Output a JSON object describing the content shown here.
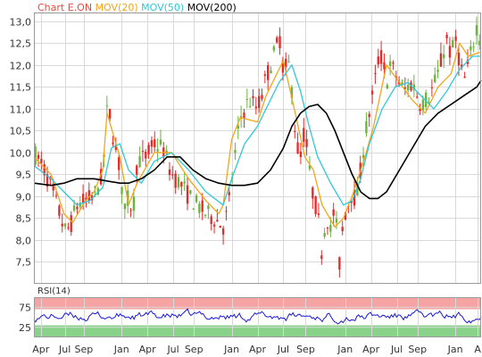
{
  "colors": {
    "background": "#ffffff",
    "panel_bg": "#ffffff",
    "grid": "#d9d9d9",
    "axis": "#9a9a9a",
    "text": "#333333",
    "candle_up": "#6ab43e",
    "candle_down": "#e32b2b",
    "mov20": "#f2a61a",
    "mov50": "#2fc8d9",
    "mov200": "#000000",
    "rsi_line": "#1a1ad6",
    "rsi_overbought": "#f6a3a3",
    "rsi_oversold": "#88d28a"
  },
  "legend": [
    {
      "key": "title",
      "label": "Chart E.ON",
      "color": "#e84c3d"
    },
    {
      "key": "mov20",
      "label": "MOV(20)",
      "color": "#f2a61a"
    },
    {
      "key": "mov50",
      "label": "MOV(50)",
      "color": "#2fc8d9"
    },
    {
      "key": "mov200",
      "label": "MOV(200)",
      "color": "#000000"
    }
  ],
  "chart_data": {
    "type": "line",
    "title": "Chart E.ON",
    "price_axis": {
      "ylim": [
        7.0,
        13.2
      ],
      "ticks": [
        "7,5",
        "8,0",
        "8,5",
        "9,0",
        "9,5",
        "10,0",
        "10,5",
        "11,0",
        "11,5",
        "12,0",
        "12,5",
        "13,0"
      ],
      "tick_values": [
        7.5,
        8.0,
        8.5,
        9.0,
        9.5,
        10.0,
        10.5,
        11.0,
        11.5,
        12.0,
        12.5,
        13.0
      ]
    },
    "x_labels": [
      "Apr",
      "Jul",
      "Sep",
      "Jan",
      "Apr",
      "Jul",
      "Sep",
      "Jan",
      "Apr",
      "Jul",
      "Sep",
      "Jan",
      "Apr",
      "Jul",
      "Sep",
      "Jan",
      "A"
    ],
    "x_label_positions": [
      0.8,
      3.6,
      5.8,
      10.2,
      13.2,
      16.2,
      18.6,
      23.0,
      26.0,
      29.0,
      31.6,
      36.2,
      39.2,
      42.2,
      44.6,
      49.0,
      51.6
    ],
    "x_domain": [
      0,
      52
    ],
    "series": [
      {
        "name": "MOV(20)",
        "x": [
          0,
          2,
          3.5,
          4.5,
          6,
          7,
          8,
          8.5,
          10,
          11,
          12,
          14,
          16,
          18,
          20,
          21.5,
          22,
          23,
          24,
          26,
          27,
          29,
          30.5,
          31.5,
          32.5,
          33.5,
          35,
          36,
          37,
          38.5,
          39.5,
          41,
          42.5,
          44,
          45.5,
          47,
          48.5,
          49.5,
          50.5,
          52
        ],
        "values": [
          9.9,
          9.5,
          8.6,
          8.4,
          8.9,
          9.1,
          9.6,
          10.9,
          9.9,
          8.8,
          9.3,
          10.0,
          10.0,
          9.4,
          8.9,
          8.6,
          8.8,
          10.3,
          10.8,
          10.7,
          11.3,
          12.1,
          10.8,
          9.9,
          9.6,
          8.8,
          8.3,
          8.5,
          9.0,
          9.9,
          10.6,
          12.0,
          11.6,
          11.2,
          10.9,
          11.5,
          11.8,
          12.5,
          12.2,
          12.3
        ]
      },
      {
        "name": "MOV(50)",
        "x": [
          0,
          2,
          3.5,
          5,
          6.5,
          8,
          9,
          10,
          11,
          12.5,
          14,
          16,
          18,
          20,
          22,
          23,
          24.5,
          26,
          27,
          28.5,
          30,
          31,
          32,
          33,
          34.5,
          36,
          37,
          38,
          39,
          40.5,
          42,
          43.5,
          45,
          46.5,
          48,
          49.5,
          51,
          52
        ],
        "values": [
          9.7,
          9.4,
          9.1,
          8.8,
          8.9,
          9.2,
          10.1,
          10.2,
          9.6,
          9.3,
          9.8,
          10.0,
          9.6,
          9.1,
          8.8,
          9.4,
          10.2,
          10.6,
          11.0,
          11.6,
          12.0,
          11.4,
          10.6,
          9.9,
          9.3,
          8.8,
          8.9,
          9.4,
          10.2,
          11.0,
          11.5,
          11.6,
          11.3,
          11.0,
          11.4,
          11.9,
          12.2,
          12.2
        ]
      },
      {
        "name": "MOV(200)",
        "x": [
          0,
          2,
          3.5,
          5,
          7,
          8.5,
          10,
          11,
          12.5,
          14,
          15.5,
          17,
          18.5,
          20,
          21.5,
          23,
          24.5,
          26,
          27.5,
          29,
          30,
          31,
          32,
          33,
          34,
          35,
          36,
          37,
          38,
          39,
          40,
          41,
          42.5,
          44,
          45.5,
          47,
          48.5,
          50,
          51.5,
          52
        ],
        "values": [
          9.3,
          9.25,
          9.3,
          9.4,
          9.4,
          9.35,
          9.3,
          9.3,
          9.4,
          9.6,
          9.9,
          9.9,
          9.6,
          9.4,
          9.3,
          9.25,
          9.25,
          9.3,
          9.6,
          10.1,
          10.6,
          10.9,
          11.05,
          11.1,
          10.9,
          10.5,
          10.0,
          9.5,
          9.1,
          8.95,
          8.95,
          9.1,
          9.6,
          10.1,
          10.6,
          10.9,
          11.1,
          11.3,
          11.5,
          11.65
        ]
      }
    ],
    "candles": {
      "x_range": [
        0,
        52
      ],
      "count": 150,
      "price_path_x": [
        0,
        1,
        2,
        3,
        3.6,
        4.2,
        5,
        6,
        7,
        8,
        8.6,
        9.2,
        10,
        10.6,
        11,
        11.5,
        12,
        13,
        14,
        15,
        16,
        17,
        18,
        19,
        20,
        21,
        22,
        22.6,
        23,
        24,
        25,
        26,
        27,
        28,
        28.6,
        29,
        29.8,
        30,
        30.5,
        31,
        31.5,
        32,
        32.5,
        33,
        33.5,
        34,
        34.5,
        35,
        35.5,
        36,
        36.5,
        37,
        37.5,
        38,
        38.5,
        39,
        39.5,
        40,
        40.5,
        41,
        41.5,
        42,
        43,
        44,
        45,
        46,
        47,
        48,
        48.5,
        49,
        49.5,
        50,
        50.5,
        51,
        51.5,
        52
      ],
      "price_path_y": [
        10.0,
        9.7,
        9.2,
        8.6,
        8.2,
        8.3,
        8.8,
        8.9,
        9.0,
        9.5,
        11.2,
        10.4,
        9.6,
        8.6,
        9.0,
        8.6,
        9.8,
        9.9,
        10.2,
        10.1,
        9.5,
        9.3,
        9.0,
        8.8,
        8.6,
        8.5,
        8.3,
        8.7,
        9.4,
        10.8,
        11.2,
        11.0,
        11.7,
        12.3,
        12.6,
        11.9,
        12.0,
        11.4,
        10.2,
        9.9,
        10.6,
        9.6,
        9.0,
        8.6,
        7.7,
        8.6,
        8.2,
        8.8,
        7.4,
        8.5,
        8.8,
        9.1,
        8.9,
        9.6,
        10.4,
        10.9,
        11.4,
        12.1,
        12.2,
        11.6,
        12.0,
        11.8,
        11.4,
        11.6,
        11.1,
        11.3,
        11.8,
        12.6,
        12.2,
        12.6,
        12.1,
        11.6,
        12.0,
        12.4,
        12.9,
        12.5
      ]
    },
    "rsi": {
      "name": "RSI(14)",
      "ylim": [
        0,
        100
      ],
      "ticks": [
        "25",
        "75"
      ],
      "tick_values": [
        25,
        75
      ],
      "overbought": 70,
      "oversold": 30,
      "count": 260,
      "mean": 52,
      "amplitude": 15
    }
  }
}
